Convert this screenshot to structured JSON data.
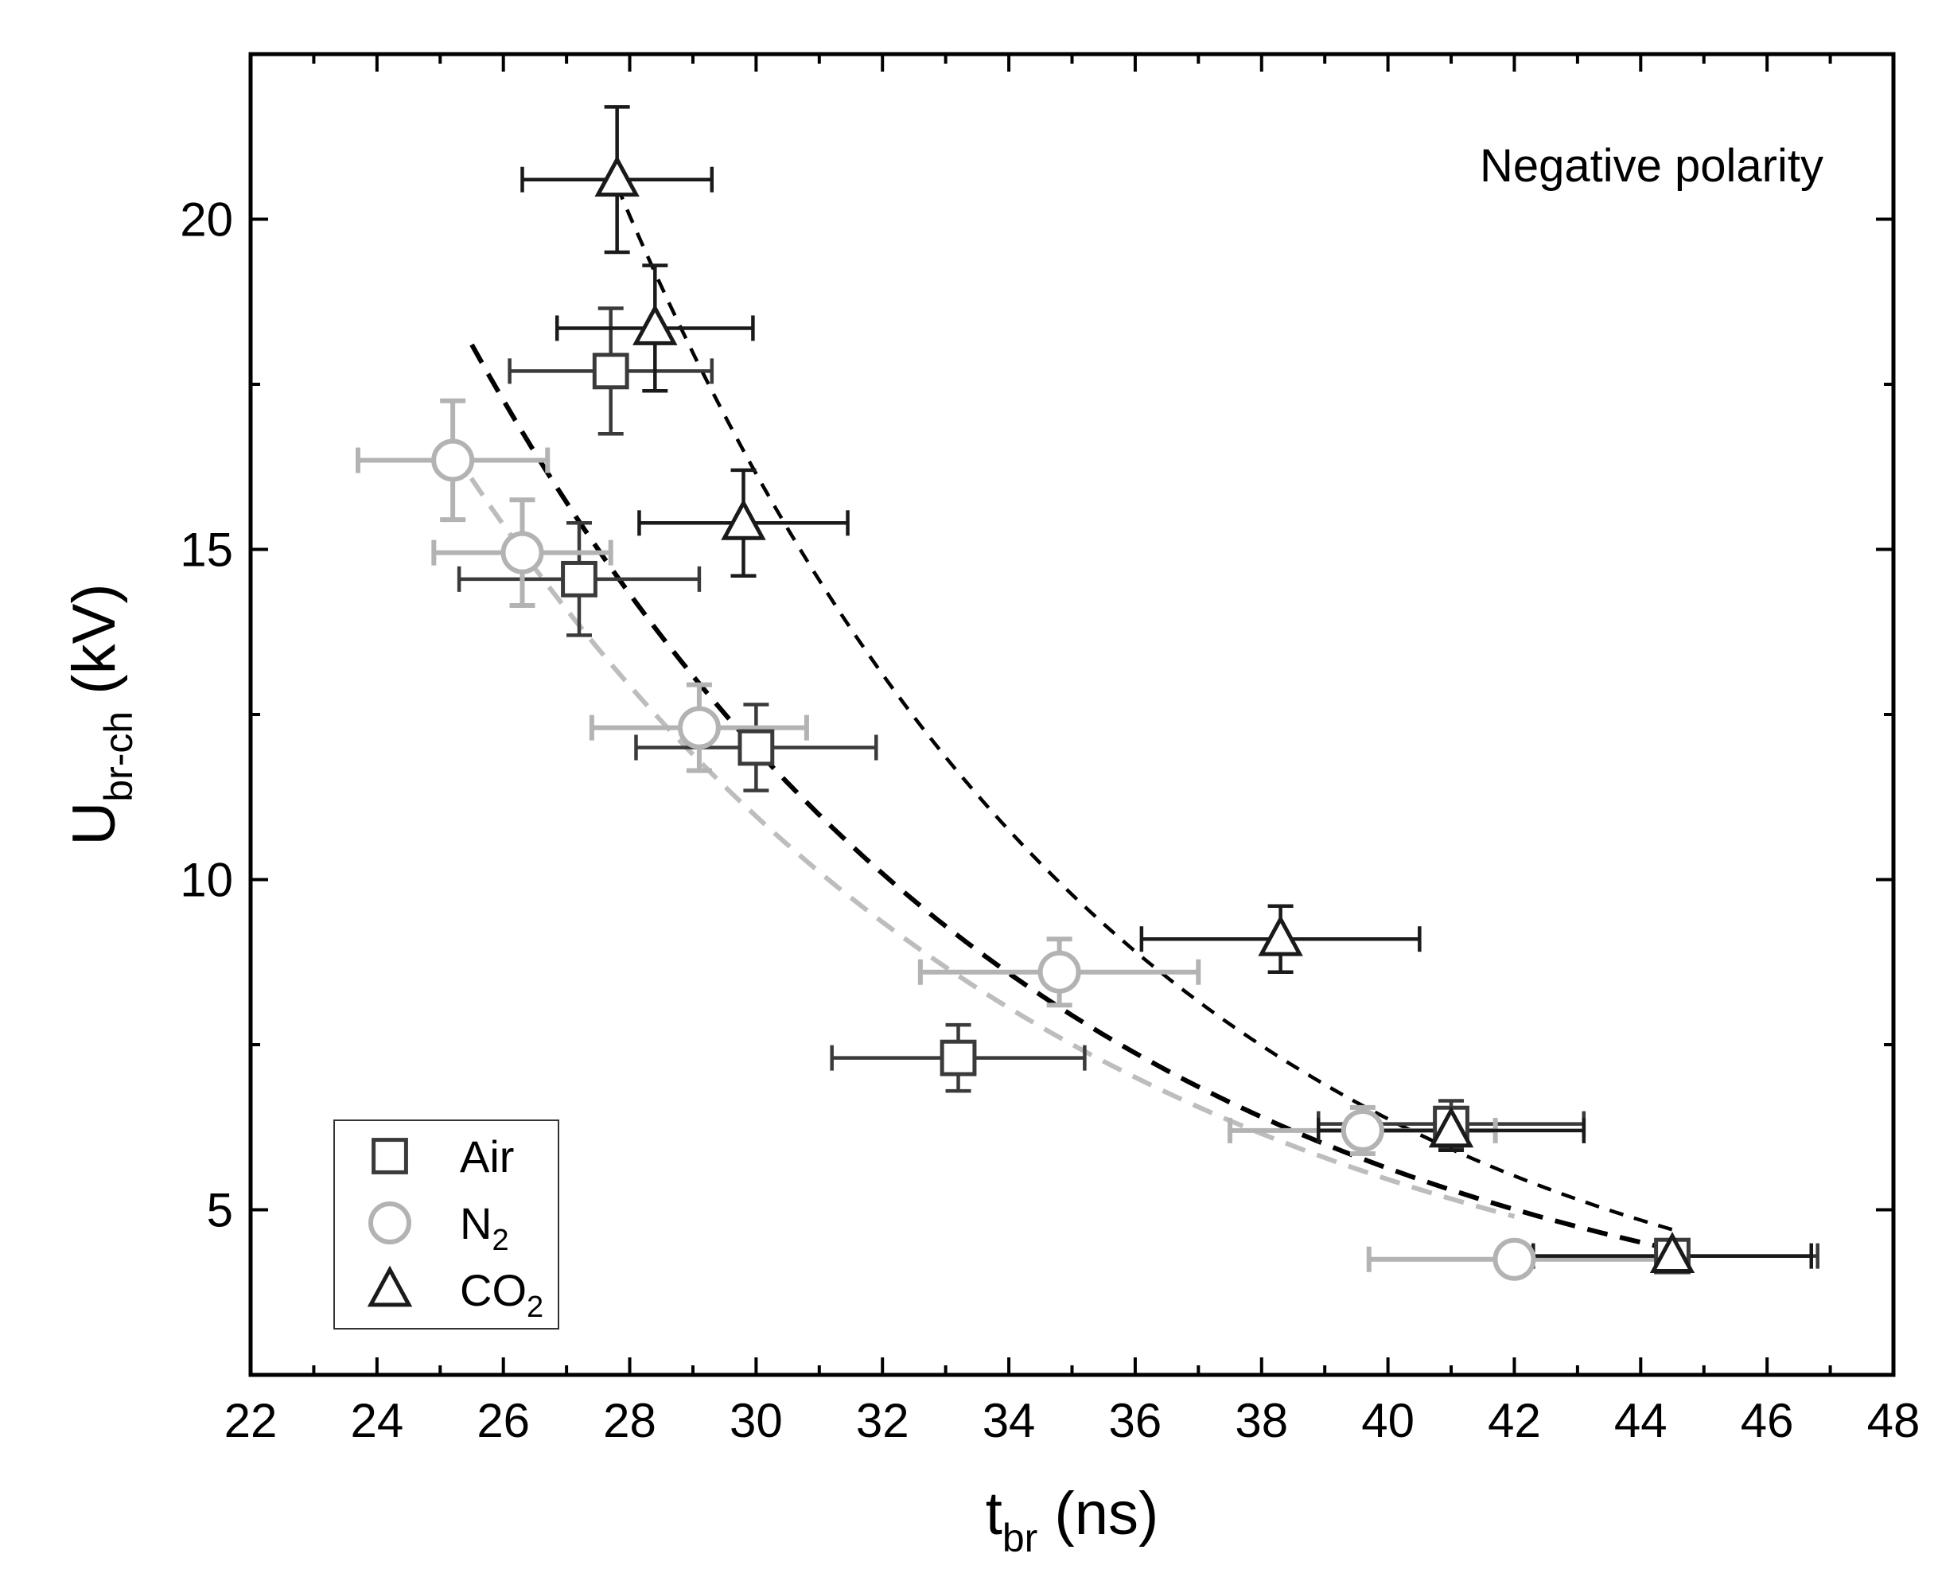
{
  "chart_data": {
    "type": "scatter",
    "title": "",
    "annotation": "Negative polarity",
    "xlabel": {
      "main": "t",
      "sub": "br",
      "unit": " (ns)"
    },
    "ylabel": {
      "main": "U",
      "sub": "br-ch",
      "unit": " (kV)"
    },
    "xlim": [
      22,
      48
    ],
    "ylim": [
      2.5,
      22.5
    ],
    "xticks": [
      22,
      24,
      26,
      28,
      30,
      32,
      34,
      36,
      38,
      40,
      42,
      44,
      46,
      48
    ],
    "yticks": [
      5,
      10,
      15,
      20
    ],
    "legend_position": "bottom-left",
    "series": [
      {
        "name": "Air",
        "name_main": "Air",
        "name_sub": "",
        "marker": "square",
        "color": "#3a3a3a",
        "points": [
          {
            "x": 27.7,
            "y": 17.7,
            "xerr": 1.6,
            "yerr": 0.95
          },
          {
            "x": 27.2,
            "y": 14.55,
            "xerr": 1.9,
            "yerr": 0.85
          },
          {
            "x": 30.0,
            "y": 12.0,
            "xerr": 1.9,
            "yerr": 0.65
          },
          {
            "x": 33.2,
            "y": 7.3,
            "xerr": 2.0,
            "yerr": 0.5
          },
          {
            "x": 41.0,
            "y": 6.3,
            "xerr": 2.1,
            "yerr": 0.35
          },
          {
            "x": 44.5,
            "y": 4.3,
            "xerr": 2.3,
            "yerr": 0.15
          }
        ],
        "fit": {
          "x_start": 25.5,
          "x_end": 44.5,
          "y_start": 18.1,
          "y_end": 4.4
        }
      },
      {
        "name": "N2",
        "name_main": "N",
        "name_sub": "2",
        "marker": "circle",
        "color": "#b3b3b3",
        "points": [
          {
            "x": 25.2,
            "y": 16.35,
            "xerr": 1.5,
            "yerr": 0.9
          },
          {
            "x": 26.3,
            "y": 14.95,
            "xerr": 1.4,
            "yerr": 0.8
          },
          {
            "x": 29.1,
            "y": 12.3,
            "xerr": 1.7,
            "yerr": 0.65
          },
          {
            "x": 34.8,
            "y": 8.6,
            "xerr": 2.2,
            "yerr": 0.5
          },
          {
            "x": 39.6,
            "y": 6.2,
            "xerr": 2.1,
            "yerr": 0.35
          },
          {
            "x": 42.0,
            "y": 4.25,
            "xerr": 2.3,
            "yerr": 0.15
          }
        ],
        "fit": {
          "x_start": 25.2,
          "x_end": 42.0,
          "y_start": 16.5,
          "y_end": 4.9
        }
      },
      {
        "name": "CO2",
        "name_main": "CO",
        "name_sub": "2",
        "marker": "triangle",
        "color": "#1a1a1a",
        "points": [
          {
            "x": 27.8,
            "y": 20.6,
            "xerr": 1.5,
            "yerr": 1.1
          },
          {
            "x": 28.4,
            "y": 18.35,
            "xerr": 1.55,
            "yerr": 0.95
          },
          {
            "x": 29.8,
            "y": 15.4,
            "xerr": 1.65,
            "yerr": 0.8
          },
          {
            "x": 38.3,
            "y": 9.1,
            "xerr": 2.2,
            "yerr": 0.5
          },
          {
            "x": 41.0,
            "y": 6.2,
            "xerr": 2.1,
            "yerr": 0.3
          },
          {
            "x": 44.5,
            "y": 4.3,
            "xerr": 2.2,
            "yerr": 0.15
          }
        ],
        "fit": {
          "x_start": 27.8,
          "x_end": 44.5,
          "y_start": 20.5,
          "y_end": 4.7
        }
      }
    ]
  }
}
